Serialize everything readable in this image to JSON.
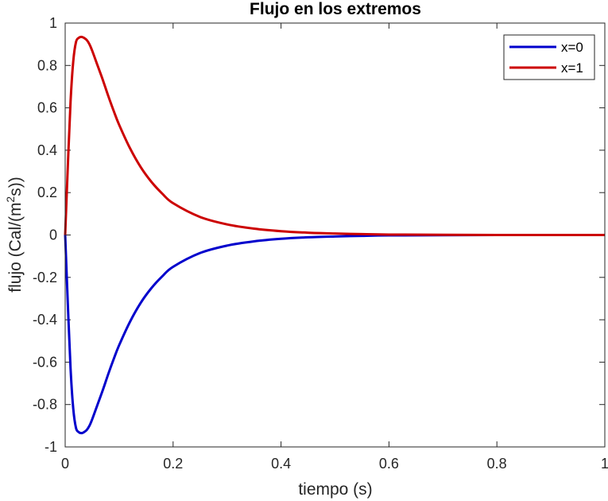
{
  "chart_data": {
    "type": "line",
    "title": "Flujo en los extremos",
    "xlabel": "tiempo (s)",
    "ylabel": {
      "prefix": "flujo (Cal/(m",
      "superscript": "2",
      "suffix": "s))"
    },
    "xlim": [
      0,
      1
    ],
    "ylim": [
      -1,
      1
    ],
    "xticks": [
      0,
      0.2,
      0.4,
      0.6,
      0.8,
      1
    ],
    "xtick_labels": [
      "0",
      "0.2",
      "0.4",
      "0.6",
      "0.8",
      "1"
    ],
    "yticks": [
      -1,
      -0.8,
      -0.6,
      -0.4,
      -0.2,
      0,
      0.2,
      0.4,
      0.6,
      0.8,
      1
    ],
    "ytick_labels": [
      "-1",
      "-0.8",
      "-0.6",
      "-0.4",
      "-0.2",
      "0",
      "0.2",
      "0.4",
      "0.6",
      "0.8",
      "1"
    ],
    "grid": false,
    "legend_position": "top-right",
    "series": [
      {
        "name": "x=0",
        "color": "#0000cc",
        "x": [
          0,
          0.005,
          0.01,
          0.015,
          0.02,
          0.025,
          0.03,
          0.035,
          0.04,
          0.045,
          0.05,
          0.06,
          0.07,
          0.08,
          0.09,
          0.1,
          0.12,
          0.14,
          0.16,
          0.18,
          0.2,
          0.25,
          0.3,
          0.35,
          0.4,
          0.45,
          0.5,
          0.55,
          0.6,
          0.7,
          0.8,
          0.9,
          1.0
        ],
        "y": [
          0,
          -0.33,
          -0.63,
          -0.82,
          -0.91,
          -0.93,
          -0.935,
          -0.93,
          -0.92,
          -0.9,
          -0.87,
          -0.8,
          -0.73,
          -0.655,
          -0.585,
          -0.52,
          -0.41,
          -0.32,
          -0.25,
          -0.195,
          -0.15,
          -0.085,
          -0.05,
          -0.03,
          -0.018,
          -0.011,
          -0.007,
          -0.004,
          -0.002,
          -0.001,
          0,
          0,
          0
        ]
      },
      {
        "name": "x=1",
        "color": "#cc0000",
        "x": [
          0,
          0.005,
          0.01,
          0.015,
          0.02,
          0.025,
          0.03,
          0.035,
          0.04,
          0.045,
          0.05,
          0.06,
          0.07,
          0.08,
          0.09,
          0.1,
          0.12,
          0.14,
          0.16,
          0.18,
          0.2,
          0.25,
          0.3,
          0.35,
          0.4,
          0.45,
          0.5,
          0.55,
          0.6,
          0.7,
          0.8,
          0.9,
          1.0
        ],
        "y": [
          0,
          0.33,
          0.63,
          0.82,
          0.91,
          0.93,
          0.935,
          0.93,
          0.92,
          0.9,
          0.87,
          0.8,
          0.73,
          0.655,
          0.585,
          0.52,
          0.41,
          0.32,
          0.25,
          0.195,
          0.15,
          0.085,
          0.05,
          0.03,
          0.018,
          0.011,
          0.007,
          0.004,
          0.002,
          0.001,
          0,
          0,
          0
        ]
      }
    ]
  }
}
